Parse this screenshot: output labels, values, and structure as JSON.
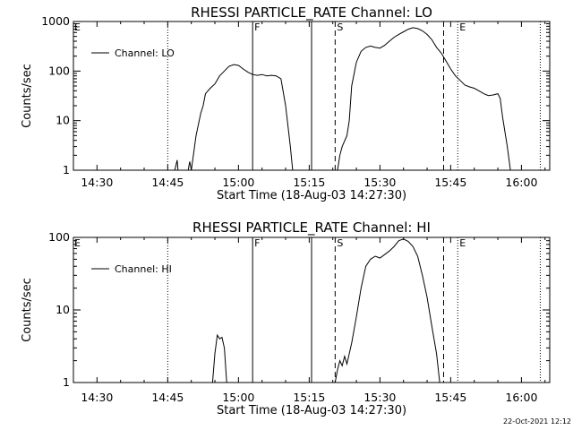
{
  "chart_data": [
    {
      "type": "line",
      "title": "RHESSI PARTICLE_RATE Channel: LO",
      "xlabel": "Start Time (18-Aug-03 14:27:30)",
      "ylabel": "Counts/sec",
      "yscale": "log",
      "ylim": [
        1,
        1000
      ],
      "xlim": [
        "14:25",
        "16:06"
      ],
      "x_ticks": [
        "14:30",
        "14:45",
        "15:00",
        "15:15",
        "15:30",
        "15:45",
        "16:00"
      ],
      "y_ticks": [
        {
          "value": 1,
          "label": "1"
        },
        {
          "value": 10,
          "label": "10"
        },
        {
          "value": 100,
          "label": "100"
        },
        {
          "value": 1000,
          "label": "1000"
        }
      ],
      "legend": {
        "position": "top-left"
      },
      "series": [
        {
          "name": "Channel: LO",
          "color": "#000000",
          "segments": [
            [
              [
                "14:46:30",
                1.0
              ],
              [
                "14:47:00",
                1.6
              ],
              [
                "14:47:10",
                1.0
              ]
            ],
            [
              [
                "14:49:20",
                1.0
              ],
              [
                "14:49:40",
                1.5
              ],
              [
                "14:50:00",
                1.0
              ]
            ],
            [
              [
                "14:50:00",
                1.0
              ],
              [
                "14:51:00",
                5
              ],
              [
                "14:52:00",
                14
              ],
              [
                "14:52:30",
                20
              ],
              [
                "14:53:00",
                35
              ],
              [
                "14:54:00",
                45
              ],
              [
                "14:55:00",
                55
              ],
              [
                "14:56:00",
                80
              ],
              [
                "14:57:00",
                100
              ],
              [
                "14:58:00",
                125
              ],
              [
                "14:59:00",
                135
              ],
              [
                "15:00:00",
                130
              ],
              [
                "15:01:00",
                110
              ],
              [
                "15:02:00",
                95
              ],
              [
                "15:03:00",
                85
              ],
              [
                "15:04:00",
                82
              ],
              [
                "15:05:00",
                85
              ],
              [
                "15:06:00",
                80
              ],
              [
                "15:07:00",
                82
              ],
              [
                "15:08:00",
                80
              ],
              [
                "15:09:00",
                70
              ],
              [
                "15:10:00",
                20
              ],
              [
                "15:11:00",
                3
              ],
              [
                "15:11:30",
                1.0
              ]
            ],
            [
              [
                "15:21:00",
                1.0
              ],
              [
                "15:21:30",
                2
              ],
              [
                "15:22:00",
                3
              ],
              [
                "15:23:00",
                5
              ],
              [
                "15:23:30",
                10
              ],
              [
                "15:24:00",
                50
              ],
              [
                "15:25:00",
                150
              ],
              [
                "15:26:00",
                250
              ],
              [
                "15:27:00",
                300
              ],
              [
                "15:28:00",
                320
              ],
              [
                "15:29:00",
                300
              ],
              [
                "15:30:00",
                290
              ],
              [
                "15:31:00",
                330
              ],
              [
                "15:32:00",
                400
              ],
              [
                "15:33:00",
                480
              ],
              [
                "15:34:00",
                550
              ],
              [
                "15:35:00",
                620
              ],
              [
                "15:36:00",
                700
              ],
              [
                "15:37:00",
                750
              ],
              [
                "15:38:00",
                720
              ],
              [
                "15:39:00",
                650
              ],
              [
                "15:40:00",
                550
              ],
              [
                "15:41:00",
                430
              ],
              [
                "15:42:00",
                300
              ],
              [
                "15:43:00",
                230
              ],
              [
                "15:44:00",
                160
              ],
              [
                "15:45:00",
                110
              ],
              [
                "15:46:00",
                80
              ],
              [
                "15:47:00",
                65
              ],
              [
                "15:48:00",
                52
              ],
              [
                "15:49:00",
                48
              ],
              [
                "15:50:00",
                45
              ],
              [
                "15:51:00",
                40
              ],
              [
                "15:52:00",
                35
              ],
              [
                "15:53:00",
                32
              ],
              [
                "15:54:00",
                33
              ],
              [
                "15:55:00",
                35
              ],
              [
                "15:55:30",
                28
              ],
              [
                "15:56:00",
                12
              ],
              [
                "15:57:00",
                3
              ],
              [
                "15:57:40",
                1.0
              ]
            ]
          ]
        }
      ],
      "vlines": [
        {
          "time": "14:45:00",
          "style": "dotted",
          "label": ""
        },
        {
          "time": "15:03:00",
          "style": "solid",
          "label": "F"
        },
        {
          "time": "15:15:30",
          "style": "solid",
          "label": ""
        },
        {
          "time": "15:20:30",
          "style": "dashed",
          "label": "S"
        },
        {
          "time": "15:43:30",
          "style": "dashed",
          "label": ""
        },
        {
          "time": "15:46:30",
          "style": "dotted",
          "label": "E"
        },
        {
          "time": "16:04:00",
          "style": "dotted",
          "label": ""
        }
      ],
      "corner_mark": "E"
    },
    {
      "type": "line",
      "title": "RHESSI PARTICLE_RATE Channel: HI",
      "xlabel": "Start Time (18-Aug-03 14:27:30)",
      "ylabel": "Counts/sec",
      "yscale": "log",
      "ylim": [
        1,
        100
      ],
      "xlim": [
        "14:25",
        "16:06"
      ],
      "x_ticks": [
        "14:30",
        "14:45",
        "15:00",
        "15:15",
        "15:30",
        "15:45",
        "16:00"
      ],
      "y_ticks": [
        {
          "value": 1,
          "label": "1"
        },
        {
          "value": 10,
          "label": "10"
        },
        {
          "value": 100,
          "label": "100"
        }
      ],
      "legend": {
        "position": "top-left"
      },
      "series": [
        {
          "name": "Channel: HI",
          "color": "#000000",
          "segments": [
            [
              [
                "14:54:30",
                1.0
              ],
              [
                "14:55:00",
                2.5
              ],
              [
                "14:55:30",
                4.5
              ],
              [
                "14:56:00",
                4.0
              ],
              [
                "14:56:30",
                4.2
              ],
              [
                "14:57:00",
                3.0
              ],
              [
                "14:57:30",
                1.0
              ]
            ],
            [
              [
                "15:20:30",
                1.0
              ],
              [
                "15:21:00",
                1.5
              ],
              [
                "15:21:30",
                2.0
              ],
              [
                "15:22:00",
                1.7
              ],
              [
                "15:22:30",
                2.3
              ],
              [
                "15:23:00",
                1.8
              ],
              [
                "15:23:30",
                2.5
              ],
              [
                "15:24:00",
                3.5
              ],
              [
                "15:25:00",
                8
              ],
              [
                "15:26:00",
                20
              ],
              [
                "15:27:00",
                40
              ],
              [
                "15:28:00",
                50
              ],
              [
                "15:29:00",
                55
              ],
              [
                "15:30:00",
                52
              ],
              [
                "15:31:00",
                58
              ],
              [
                "15:32:00",
                65
              ],
              [
                "15:33:00",
                75
              ],
              [
                "15:34:00",
                90
              ],
              [
                "15:35:00",
                95
              ],
              [
                "15:36:00",
                88
              ],
              [
                "15:37:00",
                75
              ],
              [
                "15:38:00",
                55
              ],
              [
                "15:39:00",
                30
              ],
              [
                "15:40:00",
                15
              ],
              [
                "15:41:00",
                6
              ],
              [
                "15:42:00",
                2.5
              ],
              [
                "15:42:40",
                1.0
              ]
            ]
          ]
        }
      ],
      "vlines": [
        {
          "time": "14:45:00",
          "style": "dotted",
          "label": ""
        },
        {
          "time": "15:03:00",
          "style": "solid",
          "label": "F"
        },
        {
          "time": "15:15:30",
          "style": "solid",
          "label": ""
        },
        {
          "time": "15:20:30",
          "style": "dashed",
          "label": "S"
        },
        {
          "time": "15:43:30",
          "style": "dashed",
          "label": ""
        },
        {
          "time": "15:46:30",
          "style": "dotted",
          "label": "E"
        },
        {
          "time": "16:04:00",
          "style": "dotted",
          "label": ""
        }
      ],
      "corner_mark": "E"
    }
  ],
  "footer": {
    "timestamp": "22-Oct-2021 12:12"
  }
}
